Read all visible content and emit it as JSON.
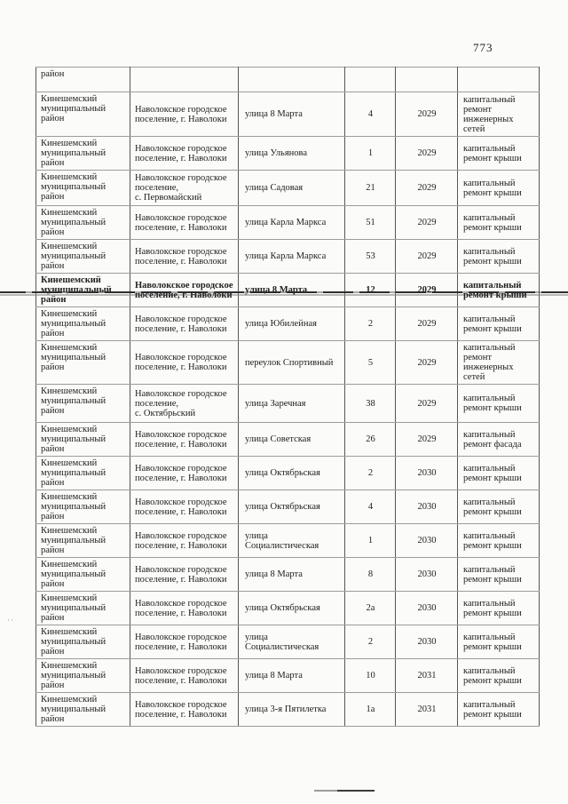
{
  "page": {
    "number": "773",
    "paper_color": "#fbfbf9",
    "ink_color": "#1d1d1d",
    "margin_mark": "··"
  },
  "table": {
    "carryover": {
      "district": "район"
    },
    "rows": [
      {
        "district": "Кинешемский\nмуниципальный\nрайон",
        "settlement": "Наволокское городское\nпоселение, г. Наволоки",
        "street": "улица 8 Марта",
        "house": "4",
        "year": "2029",
        "work": "капитальный\nремонт\nинженерных\nсетей",
        "strike": false
      },
      {
        "district": "Кинешемский\nмуниципальный\nрайон",
        "settlement": "Наволокское городское\nпоселение, г. Наволоки",
        "street": "улица Ульянова",
        "house": "1",
        "year": "2029",
        "work": "капитальный\nремонт крыши",
        "strike": false
      },
      {
        "district": "Кинешемский\nмуниципальный\nрайон",
        "settlement": "Наволокское городское\nпоселение,\nс. Первомайский",
        "street": "улица Садовая",
        "house": "21",
        "year": "2029",
        "work": "капитальный\nремонт крыши",
        "strike": false
      },
      {
        "district": "Кинешемский\nмуниципальный\nрайон",
        "settlement": "Наволокское городское\nпоселение, г. Наволоки",
        "street": "улица Карла Маркса",
        "house": "51",
        "year": "2029",
        "work": "капитальный\nремонт крыши",
        "strike": false
      },
      {
        "district": "Кинешемский\nмуниципальный\nрайон",
        "settlement": "Наволокское городское\nпоселение, г. Наволоки",
        "street": "улица Карла Маркса",
        "house": "53",
        "year": "2029",
        "work": "капитальный\nремонт крыши",
        "strike": false
      },
      {
        "district": "Кинешемский\nмуниципальный\nрайон",
        "settlement": "Наволокское городское\nпоселение, г. Наволоки",
        "street": "улица 8 Марта",
        "house": "12",
        "year": "2029",
        "work": "капитальный\nремонт крыши",
        "strike": true
      },
      {
        "district": "Кинешемский\nмуниципальный\nрайон",
        "settlement": "Наволокское городское\nпоселение, г. Наволоки",
        "street": "улица Юбилейная",
        "house": "2",
        "year": "2029",
        "work": "капитальный\nремонт крыши",
        "strike": false
      },
      {
        "district": "Кинешемский\nмуниципальный\nрайон",
        "settlement": "Наволокское городское\nпоселение, г. Наволоки",
        "street": "переулок Спортивный",
        "house": "5",
        "year": "2029",
        "work": "капитальный\nремонт\nинженерных\nсетей",
        "strike": false
      },
      {
        "district": "Кинешемский\nмуниципальный\nрайон",
        "settlement": "Наволокское городское\nпоселение,\nс. Октябрьский",
        "street": "улица Заречная",
        "house": "38",
        "year": "2029",
        "work": "капитальный\nремонт крыши",
        "strike": false
      },
      {
        "district": "Кинешемский\nмуниципальный\nрайон",
        "settlement": "Наволокское городское\nпоселение, г. Наволоки",
        "street": "улица Советская",
        "house": "26",
        "year": "2029",
        "work": "капитальный\nремонт фасада",
        "strike": false
      },
      {
        "district": "Кинешемский\nмуниципальный\nрайон",
        "settlement": "Наволокское городское\nпоселение, г. Наволоки",
        "street": "улица Октябрьская",
        "house": "2",
        "year": "2030",
        "work": "капитальный\nремонт крыши",
        "strike": false
      },
      {
        "district": "Кинешемский\nмуниципальный\nрайон",
        "settlement": "Наволокское городское\nпоселение, г. Наволоки",
        "street": "улица Октябрьская",
        "house": "4",
        "year": "2030",
        "work": "капитальный\nремонт крыши",
        "strike": false
      },
      {
        "district": "Кинешемский\nмуниципальный\nрайон",
        "settlement": "Наволокское городское\nпоселение, г. Наволоки",
        "street": "улица\nСоциалистическая",
        "house": "1",
        "year": "2030",
        "work": "капитальный\nремонт крыши",
        "strike": false
      },
      {
        "district": "Кинешемский\nмуниципальный\nрайон",
        "settlement": "Наволокское городское\nпоселение, г. Наволоки",
        "street": "улица 8 Марта",
        "house": "8",
        "year": "2030",
        "work": "капитальный\nремонт крыши",
        "strike": false
      },
      {
        "district": "Кинешемский\nмуниципальный\nрайон",
        "settlement": "Наволокское городское\nпоселение, г. Наволоки",
        "street": "улица Октябрьская",
        "house": "2а",
        "year": "2030",
        "work": "капитальный\nремонт крыши",
        "strike": false
      },
      {
        "district": "Кинешемский\nмуниципальный\nрайон",
        "settlement": "Наволокское городское\nпоселение, г. Наволоки",
        "street": "улица\nСоциалистическая",
        "house": "2",
        "year": "2030",
        "work": "капитальный\nремонт крыши",
        "strike": false
      },
      {
        "district": "Кинешемский\nмуниципальный\nрайон",
        "settlement": "Наволокское городское\nпоселение, г. Наволоки",
        "street": "улица 8 Марта",
        "house": "10",
        "year": "2031",
        "work": "капитальный\nремонт крыши",
        "strike": false
      },
      {
        "district": "Кинешемский\nмуниципальный\nрайон",
        "settlement": "Наволокское городское\nпоселение, г. Наволоки",
        "street": "улица 3-я Пятилетка",
        "house": "1а",
        "year": "2031",
        "work": "капитальный\nремонт крыши",
        "strike": false
      }
    ]
  }
}
